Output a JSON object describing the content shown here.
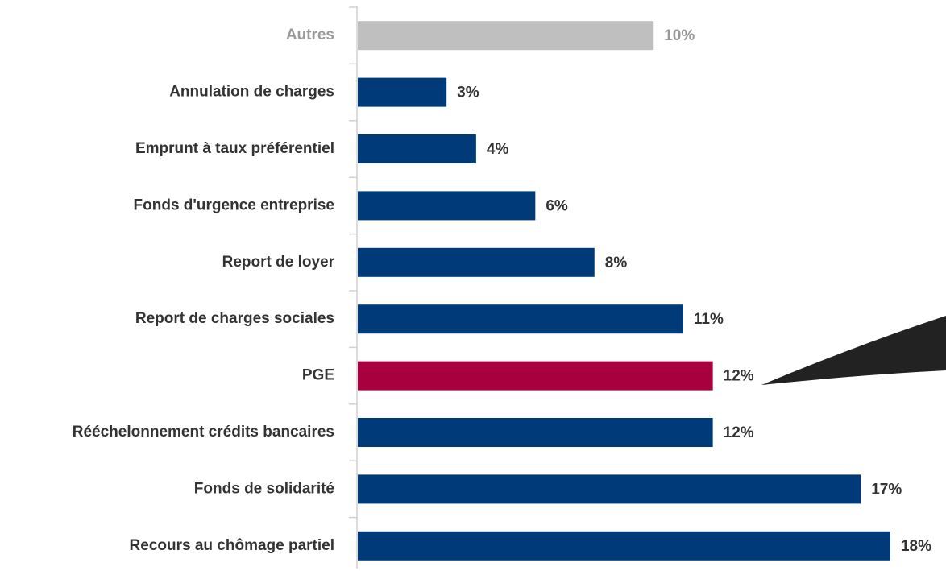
{
  "chart_data": {
    "type": "barh",
    "categories": [
      "Autres",
      "Annulation de charges",
      "Emprunt  à taux préférentiel",
      "Fonds d'urgence entreprise",
      "Report de loyer",
      "Report de charges sociales",
      "PGE",
      "Rééchelonnement crédits bancaires",
      "Fonds de solidarité",
      "Recours au chômage partiel"
    ],
    "values": [
      10,
      3,
      4,
      6,
      8,
      11,
      12,
      12,
      17,
      18
    ],
    "value_labels": [
      "10%",
      "3%",
      "4%",
      "6%",
      "8%",
      "11%",
      "12%",
      "12%",
      "17%",
      "18%"
    ],
    "colors": [
      "#bfbfbf",
      "#003a78",
      "#003a78",
      "#003a78",
      "#003a78",
      "#003a78",
      "#a8003f",
      "#003a78",
      "#003a78",
      "#003a78"
    ],
    "label_colors": [
      "#999999",
      "#333333",
      "#333333",
      "#333333",
      "#333333",
      "#333333",
      "#333333",
      "#333333",
      "#333333",
      "#333333"
    ]
  }
}
